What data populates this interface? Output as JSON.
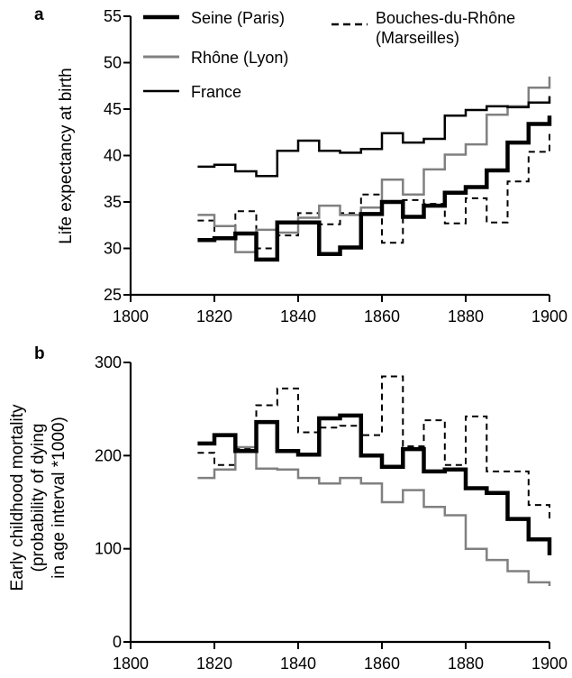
{
  "chart_data": [
    {
      "type": "line",
      "step": true,
      "panel_label": "a",
      "title": "",
      "xlabel": "",
      "ylabel": "Life expectancy at birth",
      "xlim": [
        1800,
        1900
      ],
      "ylim": [
        25,
        55
      ],
      "xticks": [
        1800,
        1820,
        1840,
        1860,
        1880,
        1900
      ],
      "yticks": [
        25,
        30,
        35,
        40,
        45,
        50,
        55
      ],
      "legend_placement": "top",
      "series": [
        {
          "name": "Seine (Paris)",
          "color": "#000000",
          "style": "thick-solid",
          "x": [
            1816,
            1820,
            1825,
            1830,
            1835,
            1840,
            1845,
            1850,
            1855,
            1860,
            1865,
            1870,
            1875,
            1880,
            1885,
            1890,
            1895,
            1900
          ],
          "y": [
            30.9,
            31.1,
            31.6,
            28.8,
            32.8,
            32.8,
            29.4,
            30.1,
            33.7,
            35.0,
            33.4,
            34.6,
            36.0,
            36.6,
            38.4,
            41.4,
            43.4,
            44.3
          ]
        },
        {
          "name": "Rhône (Lyon)",
          "color": "#808080",
          "style": "solid",
          "x": [
            1816,
            1820,
            1825,
            1830,
            1835,
            1840,
            1845,
            1850,
            1855,
            1860,
            1865,
            1870,
            1875,
            1880,
            1885,
            1890,
            1895,
            1900
          ],
          "y": [
            33.6,
            32.4,
            29.6,
            32.0,
            31.7,
            33.3,
            34.6,
            33.6,
            34.4,
            37.4,
            35.8,
            38.5,
            40.1,
            41.2,
            44.4,
            45.3,
            47.3,
            48.5
          ]
        },
        {
          "name": "France",
          "color": "#000000",
          "style": "solid",
          "x": [
            1816,
            1820,
            1825,
            1830,
            1835,
            1840,
            1845,
            1850,
            1855,
            1860,
            1865,
            1870,
            1875,
            1880,
            1885,
            1890,
            1895,
            1900
          ],
          "y": [
            38.8,
            39.0,
            38.3,
            37.8,
            40.5,
            41.6,
            40.5,
            40.3,
            40.7,
            42.4,
            41.4,
            41.8,
            44.3,
            44.9,
            45.3,
            45.2,
            45.7,
            46.4
          ]
        },
        {
          "name": "Bouches-du-Rhône (Marseilles)",
          "color": "#000000",
          "style": "dashed",
          "x": [
            1816,
            1820,
            1825,
            1830,
            1835,
            1840,
            1845,
            1850,
            1855,
            1860,
            1865,
            1870,
            1875,
            1880,
            1885,
            1890,
            1895,
            1900
          ],
          "y": [
            33.0,
            31.0,
            34.0,
            30.0,
            31.4,
            33.8,
            32.6,
            33.8,
            35.8,
            30.6,
            35.2,
            34.8,
            32.7,
            35.4,
            32.8,
            37.2,
            40.4,
            42.4
          ]
        }
      ]
    },
    {
      "type": "line",
      "step": true,
      "panel_label": "b",
      "title": "",
      "xlabel": "",
      "ylabel_lines": [
        "Early childhood mortality",
        "(probability of dying",
        "in age interval *1000)"
      ],
      "xlim": [
        1800,
        1900
      ],
      "ylim": [
        0,
        300
      ],
      "xticks": [
        1800,
        1820,
        1840,
        1860,
        1880,
        1900
      ],
      "yticks": [
        0,
        100,
        200,
        300
      ],
      "series": [
        {
          "name": "Seine (Paris)",
          "color": "#000000",
          "style": "thick-solid",
          "x": [
            1816,
            1820,
            1825,
            1830,
            1835,
            1840,
            1845,
            1850,
            1855,
            1860,
            1865,
            1870,
            1875,
            1880,
            1885,
            1890,
            1895,
            1900
          ],
          "y": [
            213,
            222,
            205,
            236,
            205,
            201,
            240,
            243,
            200,
            188,
            207,
            183,
            185,
            165,
            160,
            132,
            110,
            93
          ]
        },
        {
          "name": "Rhône (Lyon)",
          "color": "#808080",
          "style": "solid",
          "x": [
            1816,
            1820,
            1825,
            1830,
            1835,
            1840,
            1845,
            1850,
            1855,
            1860,
            1865,
            1870,
            1875,
            1880,
            1885,
            1890,
            1895,
            1900
          ],
          "y": [
            176,
            185,
            209,
            186,
            185,
            176,
            170,
            176,
            170,
            150,
            163,
            145,
            136,
            100,
            88,
            76,
            64,
            60
          ]
        },
        {
          "name": "Bouches-du-Rhône (Marseilles)",
          "color": "#000000",
          "style": "dashed",
          "x": [
            1816,
            1820,
            1825,
            1830,
            1835,
            1840,
            1845,
            1850,
            1855,
            1860,
            1865,
            1870,
            1875,
            1880,
            1885,
            1890,
            1895,
            1900
          ],
          "y": [
            203,
            190,
            208,
            254,
            272,
            225,
            230,
            232,
            222,
            285,
            210,
            238,
            190,
            242,
            183,
            183,
            147,
            132
          ]
        }
      ]
    }
  ]
}
